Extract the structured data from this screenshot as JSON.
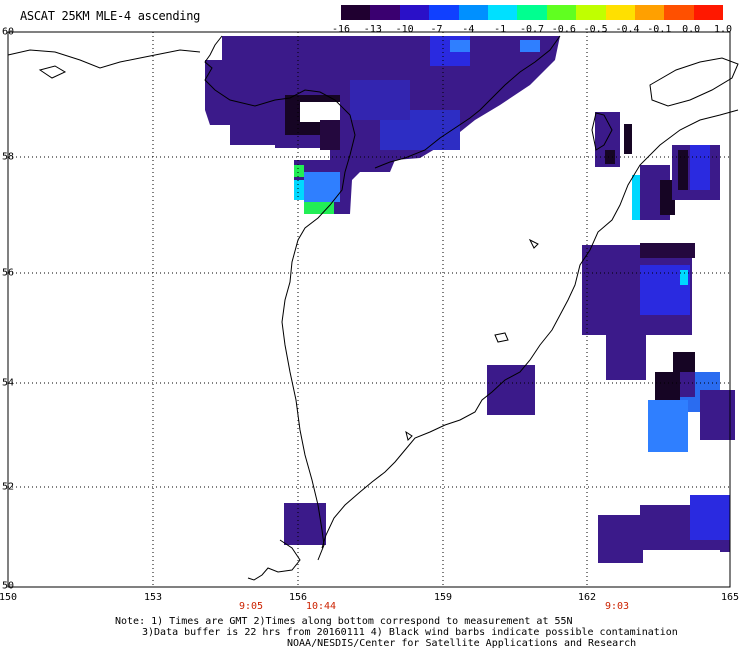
{
  "title": "ASCAT 25KM MLE-4 ascending",
  "colorbar": {
    "labels": [
      "-16",
      "-13",
      "-10",
      "-7",
      "-4",
      "-1",
      "-0.7",
      "-0.6",
      "-0.5",
      "-0.4",
      "-0.1",
      "0.0",
      "1.0"
    ],
    "colors": [
      "#200030",
      "#3a0070",
      "#2a10c8",
      "#1040ff",
      "#0090ff",
      "#00e0ff",
      "#00ff90",
      "#60ff20",
      "#c0ff00",
      "#ffe000",
      "#ffa000",
      "#ff5000",
      "#ff1800"
    ]
  },
  "axes": {
    "lon_labels": [
      "150",
      "153",
      "156",
      "159",
      "162",
      "165"
    ],
    "lat_labels": [
      "60",
      "58",
      "56",
      "54",
      "52",
      "50"
    ]
  },
  "time_labels": [
    "9:05",
    "10:44",
    "9:03"
  ],
  "note": {
    "line1": "Note: 1) Times are GMT 2)Times along bottom correspond to measurement at 55N",
    "line2": "3)Data buffer is 22 hrs from 20160111 4) Black wind barbs indicate possible contamination",
    "line3": "NOAA/NESDIS/Center for Satellite Applications and Research"
  },
  "colors": {
    "purple": "#3b1a8a",
    "dark": "#160524",
    "blue": "#2a2ae0",
    "lightblue": "#2f7fff",
    "cyan": "#00d8ff",
    "green": "#22ee55",
    "time_red": "#cc2200"
  }
}
